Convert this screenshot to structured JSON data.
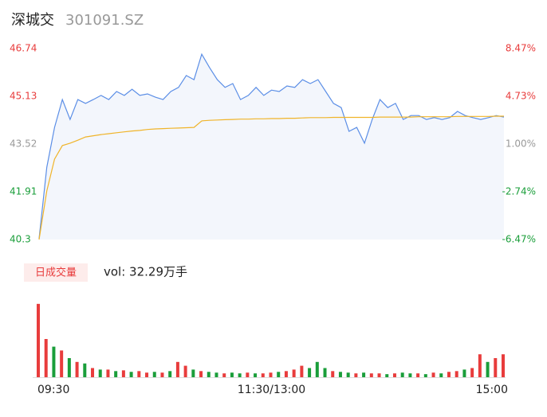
{
  "chart_data": {
    "type": "intraday",
    "title": "深城交",
    "subtitle": "301091.SZ",
    "volume_title": "日成交量",
    "volume_label": "vol: 32.29万手",
    "xlim": [
      0,
      240
    ],
    "xticks": [
      {
        "value": 0,
        "label": "09:30"
      },
      {
        "value": 120,
        "label": "11:30/13:00"
      },
      {
        "value": 240,
        "label": "15:00"
      }
    ],
    "ylim": [
      40.3,
      46.74
    ],
    "yticks": [
      46.74,
      45.13,
      43.52,
      41.91,
      40.3
    ],
    "ytick_colors": [
      "#e83c3c",
      "#e83c3c",
      "#999999",
      "#1a9e3a",
      "#1a9e3a"
    ],
    "y2lim": [
      -6.47,
      8.47
    ],
    "y2ticks": [
      {
        "value": 8.47,
        "label": "8.47%"
      },
      {
        "value": 4.73,
        "label": "4.73%"
      },
      {
        "value": 1.0,
        "label": "1.00%"
      },
      {
        "value": -2.74,
        "label": "-2.74%"
      },
      {
        "value": -6.47,
        "label": "-6.47%"
      }
    ],
    "y2tick_colors": [
      "#e83c3c",
      "#e83c3c",
      "#999999",
      "#1a9e3a",
      "#1a9e3a"
    ],
    "x": [
      0,
      4,
      8,
      12,
      16,
      20,
      24,
      28,
      32,
      36,
      40,
      44,
      48,
      52,
      56,
      60,
      64,
      68,
      72,
      76,
      80,
      84,
      88,
      92,
      96,
      100,
      104,
      108,
      112,
      116,
      120,
      124,
      128,
      132,
      136,
      140,
      144,
      148,
      152,
      156,
      160,
      164,
      168,
      172,
      176,
      180,
      184,
      188,
      192,
      196,
      200,
      204,
      208,
      212,
      216,
      220,
      224,
      228,
      232,
      236,
      240
    ],
    "series": [
      {
        "color": "#5b8ee6",
        "fill": "#f3f6fc",
        "values": [
          40.33,
          42.74,
          44.08,
          45.02,
          44.35,
          45.02,
          44.89,
          45.02,
          45.16,
          45.02,
          45.29,
          45.16,
          45.37,
          45.16,
          45.21,
          45.1,
          45.02,
          45.29,
          45.43,
          45.83,
          45.69,
          46.55,
          46.1,
          45.69,
          45.43,
          45.56,
          45.02,
          45.16,
          45.43,
          45.16,
          45.34,
          45.29,
          45.48,
          45.43,
          45.69,
          45.56,
          45.69,
          45.29,
          44.89,
          44.75,
          43.95,
          44.08,
          43.55,
          44.35,
          45.02,
          44.75,
          44.89,
          44.35,
          44.48,
          44.48,
          44.35,
          44.41,
          44.35,
          44.41,
          44.62,
          44.48,
          44.41,
          44.35,
          44.41,
          44.48,
          44.43
        ]
      },
      {
        "color": "#f0b429",
        "values": [
          40.3,
          41.94,
          43.01,
          43.47,
          43.55,
          43.65,
          43.76,
          43.8,
          43.84,
          43.87,
          43.9,
          43.93,
          43.96,
          43.98,
          44.01,
          44.03,
          44.04,
          44.05,
          44.06,
          44.07,
          44.08,
          44.3,
          44.32,
          44.33,
          44.34,
          44.35,
          44.36,
          44.36,
          44.37,
          44.37,
          44.38,
          44.38,
          44.39,
          44.39,
          44.4,
          44.41,
          44.41,
          44.41,
          44.42,
          44.42,
          44.42,
          44.42,
          44.42,
          44.42,
          44.43,
          44.43,
          44.43,
          44.43,
          44.43,
          44.44,
          44.44,
          44.44,
          44.44,
          44.44,
          44.45,
          44.45,
          44.45,
          44.45,
          44.45,
          44.46,
          44.46
        ]
      }
    ],
    "volume": {
      "values": [
        96,
        50,
        40,
        35,
        25,
        20,
        18,
        12,
        10,
        10,
        8,
        9,
        7,
        8,
        6,
        7,
        6,
        8,
        20,
        15,
        10,
        8,
        7,
        6,
        5,
        6,
        5,
        6,
        5,
        5,
        6,
        7,
        8,
        10,
        15,
        12,
        20,
        12,
        8,
        7,
        6,
        5,
        6,
        5,
        5,
        4,
        5,
        6,
        5,
        5,
        4,
        6,
        5,
        7,
        8,
        10,
        12,
        30,
        20,
        25,
        30
      ],
      "colors": [
        "#e83c3c",
        "#e83c3c",
        "#1a9e3a",
        "#e83c3c",
        "#1a9e3a",
        "#e83c3c",
        "#1a9e3a",
        "#e83c3c",
        "#1a9e3a",
        "#e83c3c",
        "#1a9e3a",
        "#e83c3c",
        "#1a9e3a",
        "#e83c3c",
        "#e83c3c",
        "#1a9e3a",
        "#e83c3c",
        "#1a9e3a",
        "#e83c3c",
        "#e83c3c",
        "#1a9e3a",
        "#e83c3c",
        "#1a9e3a",
        "#1a9e3a",
        "#e83c3c",
        "#1a9e3a",
        "#1a9e3a",
        "#e83c3c",
        "#1a9e3a",
        "#e83c3c",
        "#e83c3c",
        "#1a9e3a",
        "#e83c3c",
        "#e83c3c",
        "#e83c3c",
        "#1a9e3a",
        "#1a9e3a",
        "#1a9e3a",
        "#e83c3c",
        "#1a9e3a",
        "#1a9e3a",
        "#e83c3c",
        "#1a9e3a",
        "#e83c3c",
        "#e83c3c",
        "#1a9e3a",
        "#e83c3c",
        "#1a9e3a",
        "#1a9e3a",
        "#e83c3c",
        "#1a9e3a",
        "#e83c3c",
        "#1a9e3a",
        "#e83c3c",
        "#e83c3c",
        "#1a9e3a",
        "#e83c3c",
        "#e83c3c",
        "#1a9e3a",
        "#e83c3c",
        "#e83c3c"
      ]
    }
  }
}
